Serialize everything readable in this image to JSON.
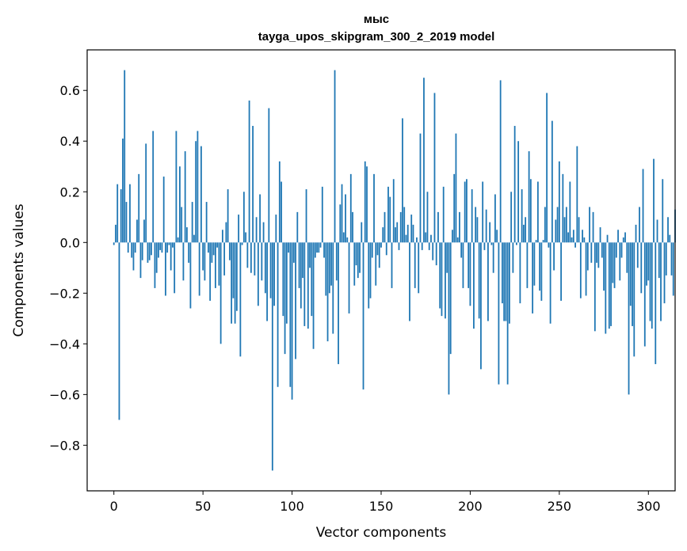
{
  "chart_data": {
    "type": "bar",
    "title": "мыс",
    "subtitle": "tayga_upos_skipgram_300_2_2019 model",
    "xlabel": "Vector components",
    "ylabel": "Components values",
    "xlim": [
      -15,
      315
    ],
    "ylim": [
      -0.98,
      0.76
    ],
    "xticks": [
      0,
      50,
      100,
      150,
      200,
      250,
      300
    ],
    "xtick_labels": [
      "0",
      "50",
      "100",
      "150",
      "200",
      "250",
      "300"
    ],
    "yticks": [
      -0.8,
      -0.6,
      -0.4,
      -0.2,
      0.0,
      0.2,
      0.4,
      0.6
    ],
    "ytick_labels": [
      "−0.8",
      "−0.6",
      "−0.4",
      "−0.2",
      "0.0",
      "0.2",
      "0.4",
      "0.6"
    ],
    "bar_color": "#1f77b4",
    "values": [
      -0.01,
      0.07,
      0.23,
      -0.7,
      0.21,
      0.41,
      0.68,
      0.16,
      -0.04,
      0.23,
      -0.06,
      -0.11,
      -0.04,
      0.09,
      0.27,
      -0.14,
      -0.07,
      0.09,
      0.39,
      -0.08,
      -0.07,
      -0.05,
      0.44,
      -0.18,
      -0.12,
      -0.06,
      -0.03,
      -0.04,
      0.26,
      -0.21,
      -0.04,
      -0.01,
      -0.11,
      -0.02,
      -0.2,
      0.44,
      0.02,
      0.3,
      0.14,
      -0.15,
      0.36,
      0.06,
      -0.08,
      -0.26,
      0.16,
      0.03,
      0.4,
      0.44,
      -0.21,
      0.38,
      -0.11,
      -0.15,
      0.16,
      -0.04,
      -0.23,
      -0.08,
      -0.05,
      -0.18,
      -0.02,
      -0.17,
      -0.4,
      0.05,
      -0.13,
      0.08,
      0.21,
      -0.07,
      -0.32,
      -0.22,
      -0.32,
      -0.27,
      0.11,
      -0.45,
      -0.01,
      0.2,
      0.04,
      -0.1,
      0.56,
      -0.12,
      0.46,
      -0.13,
      0.1,
      -0.25,
      0.19,
      -0.15,
      0.08,
      -0.2,
      -0.31,
      0.53,
      -0.22,
      -0.9,
      -0.25,
      0.11,
      -0.57,
      0.32,
      0.24,
      -0.29,
      -0.44,
      -0.32,
      -0.04,
      -0.57,
      -0.62,
      -0.08,
      -0.46,
      0.12,
      -0.18,
      -0.26,
      -0.14,
      -0.33,
      0.21,
      -0.34,
      -0.1,
      -0.29,
      -0.42,
      -0.06,
      -0.04,
      -0.04,
      -0.02,
      0.22,
      -0.06,
      -0.21,
      -0.39,
      -0.2,
      -0.17,
      -0.36,
      0.68,
      -0.15,
      -0.48,
      0.15,
      0.23,
      0.04,
      0.19,
      0.02,
      -0.28,
      0.27,
      0.12,
      -0.17,
      -0.09,
      -0.14,
      -0.12,
      0.08,
      -0.58,
      0.32,
      0.3,
      -0.26,
      -0.22,
      -0.06,
      0.27,
      -0.17,
      -0.05,
      -0.1,
      -0.02,
      0.06,
      0.12,
      -0.05,
      0.22,
      0.18,
      -0.18,
      0.25,
      0.06,
      0.08,
      -0.03,
      0.12,
      0.49,
      0.14,
      0.03,
      0.07,
      -0.31,
      0.11,
      0.07,
      -0.18,
      0.02,
      -0.2,
      0.43,
      -0.03,
      0.65,
      0.04,
      0.2,
      -0.03,
      0.03,
      -0.07,
      0.59,
      -0.09,
      0.12,
      -0.26,
      -0.29,
      0.22,
      -0.3,
      -0.12,
      -0.6,
      -0.44,
      0.05,
      0.27,
      0.43,
      0.02,
      0.12,
      -0.06,
      -0.18,
      0.24,
      0.25,
      -0.18,
      -0.25,
      0.21,
      -0.34,
      0.14,
      0.1,
      -0.3,
      -0.5,
      0.24,
      -0.03,
      0.13,
      -0.31,
      0.08,
      -0.01,
      -0.12,
      0.19,
      0.05,
      -0.56,
      0.64,
      -0.24,
      -0.31,
      -0.31,
      -0.56,
      -0.32,
      0.2,
      -0.12,
      0.46,
      -0.01,
      0.4,
      -0.24,
      0.21,
      0.07,
      0.1,
      -0.18,
      0.36,
      0.25,
      -0.28,
      -0.17,
      0.01,
      0.24,
      -0.19,
      -0.23,
      0.01,
      0.14,
      0.59,
      -0.02,
      -0.32,
      0.48,
      -0.11,
      0.09,
      0.14,
      0.32,
      -0.23,
      0.27,
      0.1,
      0.14,
      0.04,
      0.24,
      0.02,
      0.05,
      -0.02,
      0.38,
      0.1,
      -0.22,
      0.05,
      0.02,
      -0.21,
      -0.11,
      0.14,
      -0.08,
      0.12,
      -0.35,
      -0.08,
      -0.1,
      0.06,
      -0.06,
      -0.19,
      -0.36,
      0.03,
      -0.34,
      -0.33,
      -0.16,
      -0.18,
      -0.06,
      0.05,
      -0.15,
      -0.06,
      0.02,
      0.04,
      -0.12,
      -0.6,
      -0.25,
      -0.33,
      -0.45,
      0.07,
      -0.1,
      0.14,
      -0.2,
      0.29,
      -0.41,
      -0.17,
      -0.15,
      -0.31,
      -0.34,
      0.33,
      -0.48,
      0.09,
      -0.14,
      -0.31,
      0.25,
      -0.24,
      -0.13,
      0.1,
      0.03,
      -0.13,
      -0.21,
      0.13
    ]
  }
}
